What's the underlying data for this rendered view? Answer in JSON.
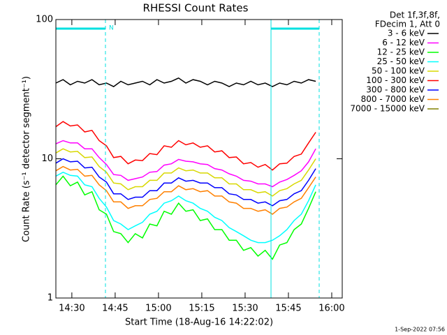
{
  "chart_data": {
    "type": "line",
    "title": "RHESSI Count Rates",
    "xlabel": "Start Time (18-Aug-16 14:22:02)",
    "ylabel": "Count Rate (s⁻¹ detector segment⁻¹)",
    "legend_title": [
      "Det 1f,3f,8f,",
      "FDecim 1, Att 0"
    ],
    "timestamp": "1-Sep-2022 07:56",
    "log_y": true,
    "xlim": [
      146,
      6096
    ],
    "ylim": [
      1,
      100
    ],
    "yticks": [
      1,
      10,
      100
    ],
    "xticks": [
      {
        "value": 478,
        "label": "14:30"
      },
      {
        "value": 1378,
        "label": "14:45"
      },
      {
        "value": 2278,
        "label": "15:00"
      },
      {
        "value": 3178,
        "label": "15:15"
      },
      {
        "value": 4078,
        "label": "15:30"
      },
      {
        "value": 4978,
        "label": "15:45"
      },
      {
        "value": 5878,
        "label": "16:00"
      }
    ],
    "intervals": [
      {
        "start": 146,
        "end": 1176,
        "label": "N"
      },
      {
        "start": 4616,
        "end": 5617
      }
    ],
    "interval_color": "#00e0e0",
    "x": [
      146,
      296,
      446,
      596,
      746,
      896,
      1046,
      1196,
      1346,
      1496,
      1646,
      1796,
      1946,
      2096,
      2246,
      2396,
      2546,
      2696,
      2846,
      2996,
      3146,
      3296,
      3446,
      3596,
      3746,
      3896,
      4046,
      4196,
      4346,
      4496,
      4646,
      4796,
      4946,
      5096,
      5246,
      5396,
      5546
    ],
    "series": [
      {
        "name": "3 - 6 keV",
        "color": "#000000",
        "values": [
          35,
          37,
          34,
          36,
          35,
          37,
          34,
          35,
          33,
          36,
          34,
          35,
          36,
          34,
          37,
          35,
          36,
          38,
          35,
          37,
          36,
          34,
          36,
          35,
          33,
          35,
          34,
          36,
          34,
          35,
          33,
          35,
          34,
          36,
          35,
          37,
          36
        ]
      },
      {
        "name": "6 - 12 keV",
        "color": "#ff00ff",
        "values": [
          12.8,
          13.5,
          13,
          13,
          11.8,
          11.8,
          10.2,
          9.1,
          7.7,
          7.6,
          7,
          7.2,
          7.4,
          8,
          8.1,
          9,
          9.2,
          9.9,
          9.6,
          9.5,
          9.2,
          9.1,
          8.5,
          8.3,
          7.8,
          7.5,
          7,
          6.9,
          6.6,
          6.6,
          6.3,
          6.8,
          7.1,
          7.6,
          8.2,
          9.5,
          11.8
        ]
      },
      {
        "name": "12 - 25 keV",
        "color": "#00ff00",
        "values": [
          6.5,
          7.5,
          6.4,
          6.8,
          5.5,
          5.8,
          4.3,
          4,
          3,
          2.9,
          2.5,
          2.9,
          2.7,
          3.4,
          3.3,
          4.2,
          4,
          4.8,
          4.2,
          4.3,
          3.6,
          3.7,
          3.1,
          3.1,
          2.6,
          2.6,
          2.2,
          2.3,
          2,
          2.2,
          1.9,
          2.4,
          2.5,
          3.1,
          3.4,
          4.4,
          5.8
        ]
      },
      {
        "name": "25 - 50 keV",
        "color": "#00ffff",
        "values": [
          7.5,
          8,
          7.6,
          7.5,
          6.5,
          6.3,
          5.2,
          4.5,
          3.6,
          3.4,
          3.1,
          3.3,
          3.5,
          4,
          4.2,
          4.8,
          5,
          5.4,
          5,
          4.8,
          4.4,
          4.2,
          3.8,
          3.6,
          3.2,
          3,
          2.8,
          2.6,
          2.5,
          2.5,
          2.6,
          2.8,
          3.1,
          3.6,
          4,
          5,
          6.5
        ]
      },
      {
        "name": "50 - 100 keV",
        "color": "#d8d800",
        "values": [
          11,
          11.8,
          11.2,
          11.3,
          10.2,
          10.3,
          8.8,
          8,
          6.7,
          6.6,
          6,
          6.3,
          6.3,
          7,
          7,
          7.9,
          7.9,
          8.6,
          8.2,
          8.3,
          7.9,
          7.9,
          7.3,
          7.3,
          6.6,
          6.6,
          6,
          6,
          5.7,
          5.8,
          5.4,
          5.9,
          6.1,
          6.6,
          7,
          8.3,
          10
        ]
      },
      {
        "name": "100 - 300 keV",
        "color": "#ff0000",
        "values": [
          17,
          18.5,
          17.2,
          17.5,
          15.6,
          16,
          13.5,
          12.4,
          10.2,
          10.4,
          9.2,
          9.8,
          9.7,
          10.9,
          10.7,
          12.4,
          12.1,
          13.5,
          12.6,
          13,
          12.1,
          12.4,
          11.2,
          11.4,
          10.2,
          10.3,
          9.2,
          9.4,
          8.7,
          9.1,
          8.3,
          9.2,
          9.3,
          10.4,
          10.8,
          13,
          15.5
        ]
      },
      {
        "name": "300 - 800 keV",
        "color": "#0000ff",
        "values": [
          9.3,
          10,
          9.5,
          9.6,
          8.6,
          8.7,
          7.4,
          6.8,
          5.6,
          5.6,
          5.1,
          5.3,
          5.3,
          5.9,
          5.9,
          6.7,
          6.7,
          7.3,
          6.9,
          7,
          6.7,
          6.7,
          6.2,
          6.2,
          5.6,
          5.5,
          5.1,
          5.1,
          4.8,
          4.9,
          4.6,
          5,
          5.1,
          5.6,
          5.9,
          7,
          8.5
        ]
      },
      {
        "name": "800 - 7000 keV",
        "color": "#ff8000",
        "values": [
          8.2,
          8.8,
          8.3,
          8.4,
          7.5,
          7.6,
          6.5,
          5.9,
          4.9,
          4.9,
          4.4,
          4.6,
          4.6,
          5.1,
          5.2,
          5.8,
          5.8,
          6.4,
          6,
          6.1,
          5.8,
          5.9,
          5.4,
          5.4,
          4.9,
          4.8,
          4.4,
          4.4,
          4.2,
          4.3,
          4,
          4.4,
          4.5,
          4.9,
          5.2,
          6.2,
          7.4
        ]
      },
      {
        "name": "7000 - 15000 keV",
        "color": "#808000",
        "values": [
          null,
          null,
          null,
          null,
          null,
          null,
          null,
          null,
          null,
          null,
          null,
          null,
          null,
          null,
          null,
          null,
          null,
          null,
          null,
          null,
          null,
          null,
          null,
          null,
          null,
          null,
          null,
          null,
          null,
          null,
          null,
          null,
          null,
          null,
          null,
          null,
          null
        ]
      }
    ]
  }
}
